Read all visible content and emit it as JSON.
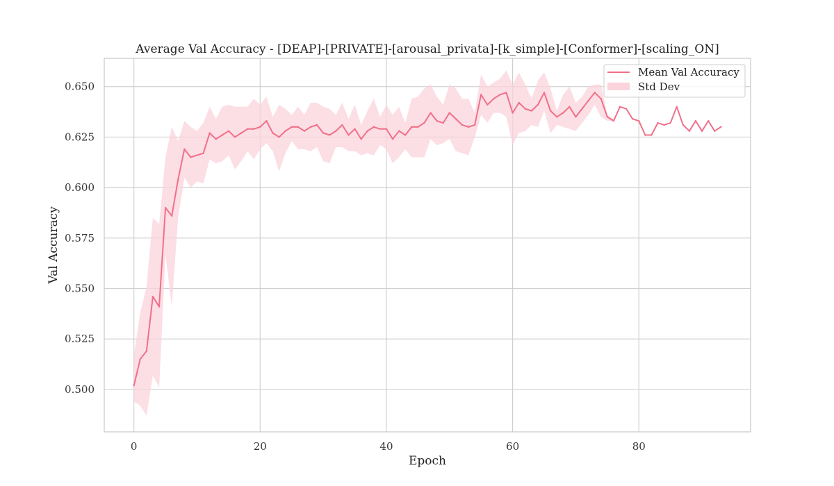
{
  "chart_data": {
    "type": "line",
    "title": "Average Val Accuracy - [DEAP]-[PRIVATE]-[arousal_privata]-[k_simple]-[Conformer]-[scaling_ON]",
    "xlabel": "Epoch",
    "ylabel": "Val Accuracy",
    "xlim": [
      -4.7,
      97.7
    ],
    "ylim": [
      0.479,
      0.664
    ],
    "xticks": [
      0,
      20,
      40,
      60,
      80
    ],
    "xtick_labels": [
      "0",
      "20",
      "40",
      "60",
      "80"
    ],
    "yticks": [
      0.5,
      0.525,
      0.55,
      0.575,
      0.6,
      0.625,
      0.65
    ],
    "ytick_labels": [
      "0.500",
      "0.525",
      "0.550",
      "0.575",
      "0.600",
      "0.625",
      "0.650"
    ],
    "grid": true,
    "legend_position": "top-right",
    "colors": {
      "line": "#f07088",
      "band": "#fbd3dc",
      "grid": "#d0d0d0",
      "frame": "#c8c8c8"
    },
    "series": [
      {
        "name": "Mean Val Accuracy",
        "x": [
          0,
          1,
          2,
          3,
          4,
          5,
          6,
          7,
          8,
          9,
          10,
          11,
          12,
          13,
          14,
          15,
          16,
          17,
          18,
          19,
          20,
          21,
          22,
          23,
          24,
          25,
          26,
          27,
          28,
          29,
          30,
          31,
          32,
          33,
          34,
          35,
          36,
          37,
          38,
          39,
          40,
          41,
          42,
          43,
          44,
          45,
          46,
          47,
          48,
          49,
          50,
          51,
          52,
          53,
          54,
          55,
          56,
          57,
          58,
          59,
          60,
          61,
          62,
          63,
          64,
          65,
          66,
          67,
          68,
          69,
          70,
          71,
          72,
          73,
          74,
          75,
          76,
          77,
          78,
          79,
          80,
          81,
          82,
          83,
          84,
          85,
          86,
          87,
          88,
          89,
          90,
          91,
          92,
          93
        ],
        "values": [
          0.502,
          0.515,
          0.519,
          0.546,
          0.541,
          0.59,
          0.586,
          0.604,
          0.619,
          0.615,
          0.616,
          0.617,
          0.627,
          0.624,
          0.626,
          0.628,
          0.625,
          0.627,
          0.629,
          0.629,
          0.63,
          0.633,
          0.627,
          0.625,
          0.628,
          0.63,
          0.63,
          0.628,
          0.63,
          0.631,
          0.627,
          0.626,
          0.628,
          0.631,
          0.626,
          0.629,
          0.624,
          0.628,
          0.63,
          0.629,
          0.629,
          0.624,
          0.628,
          0.626,
          0.63,
          0.63,
          0.632,
          0.637,
          0.633,
          0.632,
          0.637,
          0.634,
          0.631,
          0.63,
          0.631,
          0.646,
          0.641,
          0.644,
          0.646,
          0.647,
          0.637,
          0.642,
          0.639,
          0.638,
          0.641,
          0.647,
          0.638,
          0.635,
          0.637,
          0.64,
          0.635,
          0.639,
          0.643,
          0.647,
          0.644,
          0.635,
          0.633,
          0.64,
          0.639,
          0.634,
          0.633,
          0.626,
          0.626,
          0.632,
          0.631,
          0.632,
          0.64,
          0.631,
          0.628,
          0.633,
          0.628,
          0.633,
          0.628,
          0.63
        ]
      },
      {
        "name": "Std Dev",
        "x": [
          0,
          1,
          2,
          3,
          4,
          5,
          6,
          7,
          8,
          9,
          10,
          11,
          12,
          13,
          14,
          15,
          16,
          17,
          18,
          19,
          20,
          21,
          22,
          23,
          24,
          25,
          26,
          27,
          28,
          29,
          30,
          31,
          32,
          33,
          34,
          35,
          36,
          37,
          38,
          39,
          40,
          41,
          42,
          43,
          44,
          45,
          46,
          47,
          48,
          49,
          50,
          51,
          52,
          53,
          54,
          55,
          56,
          57,
          58,
          59,
          60,
          61,
          62,
          63,
          64,
          65,
          66,
          67,
          68,
          69,
          70,
          71,
          72,
          73,
          74,
          75,
          76,
          77,
          78,
          79
        ],
        "lower": [
          0.494,
          0.492,
          0.487,
          0.507,
          0.501,
          0.567,
          0.541,
          0.585,
          0.605,
          0.6,
          0.603,
          0.602,
          0.614,
          0.612,
          0.613,
          0.616,
          0.609,
          0.613,
          0.618,
          0.614,
          0.619,
          0.622,
          0.618,
          0.608,
          0.617,
          0.623,
          0.619,
          0.619,
          0.618,
          0.62,
          0.613,
          0.612,
          0.62,
          0.62,
          0.618,
          0.618,
          0.616,
          0.617,
          0.616,
          0.621,
          0.619,
          0.612,
          0.615,
          0.619,
          0.615,
          0.615,
          0.615,
          0.624,
          0.621,
          0.622,
          0.624,
          0.618,
          0.617,
          0.616,
          0.625,
          0.636,
          0.632,
          0.637,
          0.637,
          0.635,
          0.621,
          0.627,
          0.628,
          0.631,
          0.63,
          0.638,
          0.627,
          0.631,
          0.63,
          0.629,
          0.628,
          0.632,
          0.636,
          0.641,
          0.635,
          0.633,
          0.633,
          0.64,
          0.639,
          0.634
        ],
        "upper": [
          0.517,
          0.538,
          0.551,
          0.585,
          0.582,
          0.615,
          0.63,
          0.623,
          0.633,
          0.63,
          0.628,
          0.632,
          0.64,
          0.634,
          0.64,
          0.641,
          0.64,
          0.64,
          0.64,
          0.644,
          0.641,
          0.645,
          0.635,
          0.641,
          0.639,
          0.636,
          0.64,
          0.636,
          0.642,
          0.642,
          0.64,
          0.639,
          0.636,
          0.642,
          0.634,
          0.641,
          0.631,
          0.638,
          0.644,
          0.635,
          0.641,
          0.636,
          0.64,
          0.632,
          0.644,
          0.645,
          0.649,
          0.651,
          0.645,
          0.641,
          0.651,
          0.649,
          0.644,
          0.644,
          0.637,
          0.656,
          0.65,
          0.652,
          0.654,
          0.658,
          0.651,
          0.657,
          0.651,
          0.644,
          0.653,
          0.657,
          0.649,
          0.638,
          0.646,
          0.65,
          0.642,
          0.645,
          0.65,
          0.651,
          0.651,
          0.636,
          0.634,
          0.64,
          0.639,
          0.634
        ]
      }
    ]
  }
}
